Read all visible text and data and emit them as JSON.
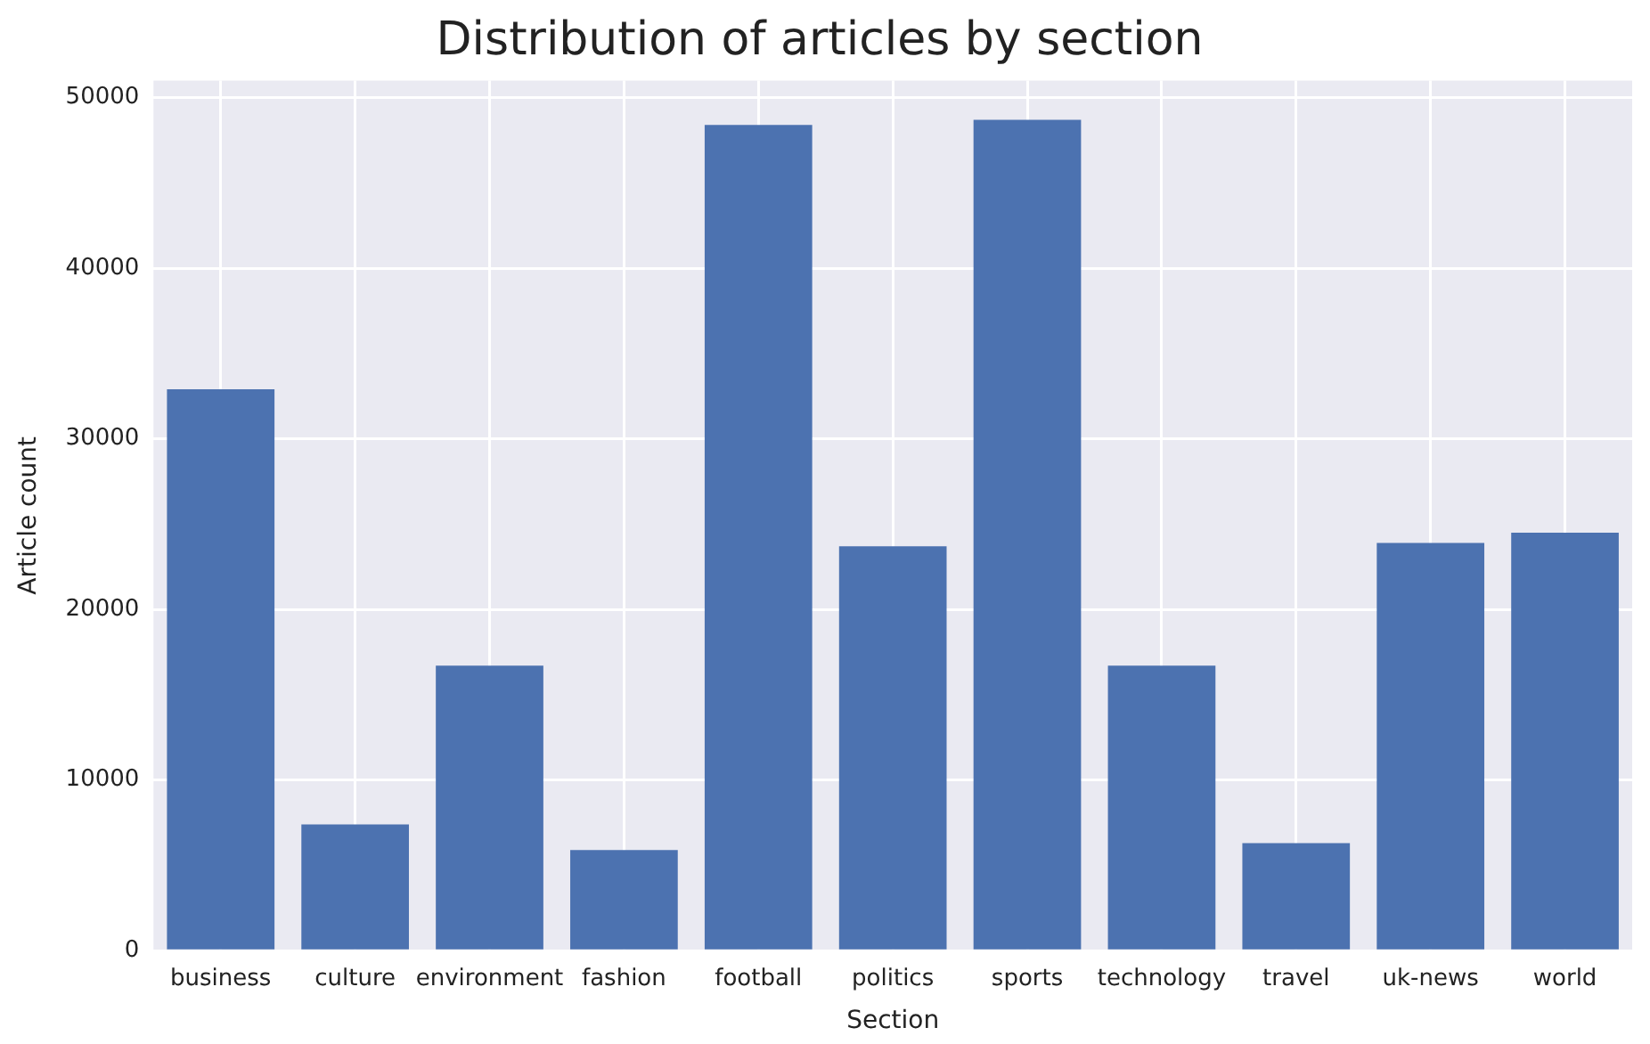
{
  "chart_data": {
    "type": "bar",
    "title": "Distribution of articles by section",
    "xlabel": "Section",
    "ylabel": "Article count",
    "categories": [
      "business",
      "culture",
      "environment",
      "fashion",
      "football",
      "politics",
      "sports",
      "technology",
      "travel",
      "uk-news",
      "world"
    ],
    "values": [
      32900,
      7400,
      16700,
      5900,
      48400,
      23700,
      48700,
      16700,
      6300,
      23900,
      24500
    ],
    "color": "#4c72b0",
    "ylim": [
      0,
      51000
    ],
    "yticks": [
      0,
      10000,
      20000,
      30000,
      40000,
      50000
    ],
    "grid": true
  }
}
